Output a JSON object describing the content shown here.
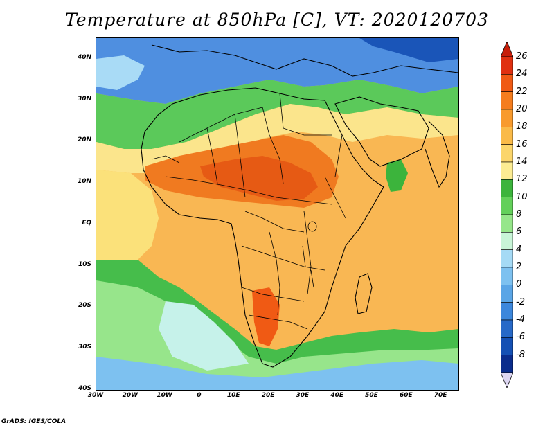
{
  "title": "Temperature at 850hPa [C], VT: 2020120703",
  "credit": "GrADS: IGES/COLA",
  "map": {
    "lon_range": [
      -30,
      75
    ],
    "lat_range": [
      -40,
      45
    ],
    "lat_ticks": [
      {
        "value": 40,
        "label": "40N"
      },
      {
        "value": 30,
        "label": "30N"
      },
      {
        "value": 20,
        "label": "20N"
      },
      {
        "value": 10,
        "label": "10N"
      },
      {
        "value": 0,
        "label": "EQ"
      },
      {
        "value": -10,
        "label": "10S"
      },
      {
        "value": -20,
        "label": "20S"
      },
      {
        "value": -30,
        "label": "30S"
      },
      {
        "value": -40,
        "label": "40S"
      }
    ],
    "lon_ticks": [
      {
        "value": -30,
        "label": "30W"
      },
      {
        "value": -20,
        "label": "20W"
      },
      {
        "value": -10,
        "label": "10W"
      },
      {
        "value": 0,
        "label": "0"
      },
      {
        "value": 10,
        "label": "10E"
      },
      {
        "value": 20,
        "label": "20E"
      },
      {
        "value": 30,
        "label": "30E"
      },
      {
        "value": 40,
        "label": "40E"
      },
      {
        "value": 50,
        "label": "50E"
      },
      {
        "value": 60,
        "label": "60E"
      },
      {
        "value": 70,
        "label": "70E"
      }
    ]
  },
  "colorbar": {
    "labels": [
      "26",
      "24",
      "22",
      "20",
      "18",
      "16",
      "14",
      "12",
      "10",
      "8",
      "6",
      "4",
      "2",
      "0",
      "-2",
      "-4",
      "-6",
      "-8"
    ],
    "colors": [
      "#e03010",
      "#f05a14",
      "#f57d1e",
      "#f89a2d",
      "#faba48",
      "#fbd56b",
      "#fcec93",
      "#3cb43c",
      "#63d05a",
      "#96e68a",
      "#c8f5d7",
      "#a5daf5",
      "#7dc1f0",
      "#5aa5e6",
      "#3c87dc",
      "#2769c8",
      "#1450b4",
      "#0a2c8c"
    ],
    "top_arrow_color": "#c81e0a",
    "bottom_arrow_color": "#ddd6f2"
  }
}
